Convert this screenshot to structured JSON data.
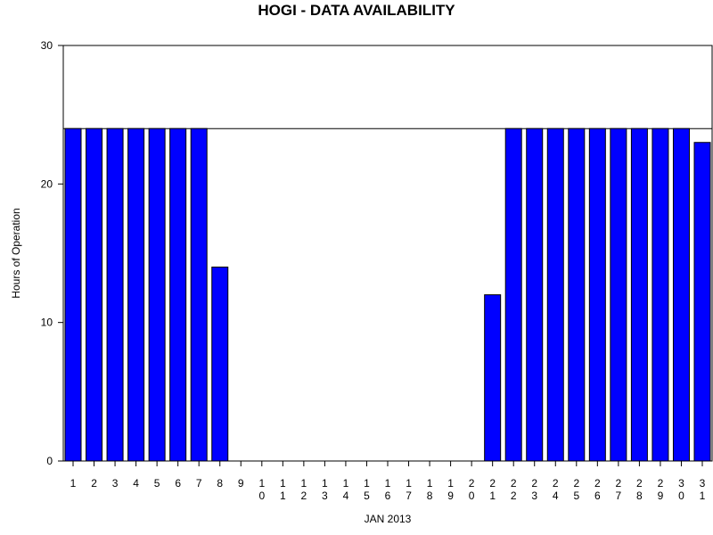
{
  "chart_data": {
    "type": "bar",
    "title": "HOGI - DATA AVAILABILITY",
    "xlabel": "JAN 2013",
    "ylabel": "Hours of Operation",
    "ylim": [
      0,
      30
    ],
    "yticks": [
      "0",
      "10",
      "20",
      "30"
    ],
    "reference_line": 24,
    "bar_color": "#0000ff",
    "categories": [
      "1",
      "2",
      "3",
      "4",
      "5",
      "6",
      "7",
      "8",
      "9",
      "10",
      "11",
      "12",
      "13",
      "14",
      "15",
      "16",
      "17",
      "18",
      "19",
      "20",
      "21",
      "22",
      "23",
      "24",
      "25",
      "26",
      "27",
      "28",
      "29",
      "30",
      "31"
    ],
    "values": [
      24,
      24,
      24,
      24,
      24,
      24,
      24,
      14,
      0,
      0,
      0,
      0,
      0,
      0,
      0,
      0,
      0,
      0,
      0,
      0,
      12,
      24,
      24,
      24,
      24,
      24,
      24,
      24,
      24,
      24,
      23
    ]
  }
}
